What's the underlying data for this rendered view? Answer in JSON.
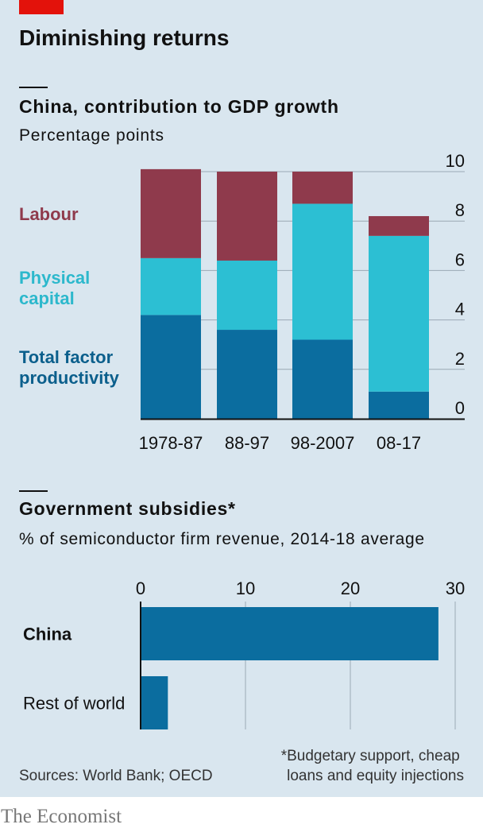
{
  "header": {
    "title": "Diminishing returns",
    "brand": "The Economist"
  },
  "colors": {
    "background": "#d9e6ef",
    "labour": "#8f3a4c",
    "capital": "#2cbfd3",
    "tfp": "#0b6d9f",
    "accent_red": "#e3120b"
  },
  "chart_data": [
    {
      "type": "bar",
      "stacked": true,
      "title": "China, contribution to GDP growth",
      "subtitle": "Percentage points",
      "categories": [
        "1978-87",
        "88-97",
        "98-2007",
        "08-17"
      ],
      "series": [
        {
          "name": "Total factor productivity",
          "values": [
            4.2,
            3.6,
            3.2,
            1.1
          ]
        },
        {
          "name": "Physical capital",
          "values": [
            2.3,
            2.8,
            5.5,
            6.3
          ]
        },
        {
          "name": "Labour",
          "values": [
            3.6,
            3.6,
            1.3,
            0.8
          ]
        }
      ],
      "legend_lines": {
        "labour": [
          "Labour"
        ],
        "capital": [
          "Physical",
          "capital"
        ],
        "tfp": [
          "Total factor",
          "productivity"
        ]
      },
      "ylim": [
        0,
        10
      ],
      "yticks": [
        "0",
        "2",
        "4",
        "6",
        "8",
        "10"
      ],
      "axis_side": "right",
      "grid": true,
      "legend": "left"
    },
    {
      "type": "bar",
      "orientation": "horizontal",
      "title": "Government subsidies*",
      "subtitle": "% of semiconductor firm revenue, 2014-18 average",
      "categories": [
        "China",
        "Rest of world"
      ],
      "values": [
        28.4,
        2.6
      ],
      "xlim": [
        0,
        30
      ],
      "xticks": [
        "0",
        "10",
        "20",
        "30"
      ],
      "grid": true,
      "footnote": [
        "*Budgetary support, cheap",
        "loans and equity injections"
      ],
      "source": "Sources: World Bank; OECD"
    }
  ]
}
